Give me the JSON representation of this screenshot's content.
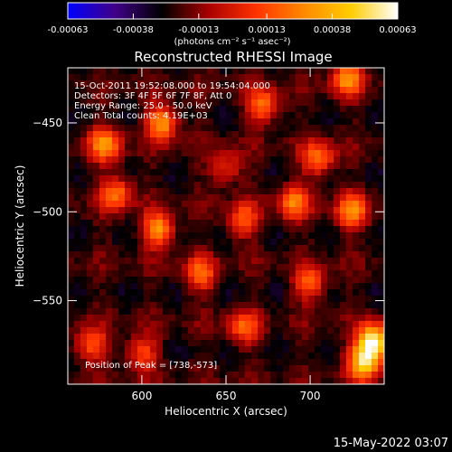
{
  "chart_data": {
    "type": "heatmap",
    "title": "Reconstructed RHESSI Image",
    "xlabel": "Heliocentric X (arcsec)",
    "ylabel": "Heliocentric Y (arcsec)",
    "xlim": [
      556,
      744
    ],
    "ylim": [
      -597,
      -419
    ],
    "x_ticks": [
      600,
      650,
      700
    ],
    "y_ticks": [
      -450,
      -500,
      -550
    ],
    "colorbar": {
      "range": [
        -0.00063,
        0.00063
      ],
      "ticks": [
        "-0.00063",
        "-0.00038",
        "-0.00013",
        "0.00013",
        "0.00038",
        "0.00063"
      ],
      "tick_values": [
        -0.00063,
        -0.00038,
        -0.00013,
        0.00013,
        0.00038,
        0.00063
      ],
      "unit_text": "(photons cm⁻² s⁻¹ asec⁻²)",
      "colormap": [
        "#0000ff",
        "#400088",
        "#000000",
        "#aa0000",
        "#ff3300",
        "#ff8800",
        "#ffcc00",
        "#ffffff"
      ]
    },
    "annotations": [
      "15-Oct-2011 19:52:08.000 to 19:54:04.000",
      "Detectors: 3F 4F 5F 6F 7F 8F, Att 0",
      "Energy Range: 25.0 - 50.0 keV",
      "Clean     Total counts: 4.19E+03"
    ],
    "peak_label": "Position of Peak = [738,-573]",
    "peak": [
      738,
      -573
    ],
    "blobs": [
      {
        "x": 612,
        "y": -450,
        "value": 0.00032
      },
      {
        "x": 578,
        "y": -462,
        "value": 0.00028
      },
      {
        "x": 672,
        "y": -440,
        "value": 0.00022
      },
      {
        "x": 722,
        "y": -425,
        "value": 0.00026
      },
      {
        "x": 705,
        "y": -470,
        "value": 0.00022
      },
      {
        "x": 725,
        "y": -500,
        "value": 0.00026
      },
      {
        "x": 690,
        "y": -495,
        "value": 0.00022
      },
      {
        "x": 660,
        "y": -505,
        "value": 0.00016
      },
      {
        "x": 610,
        "y": -510,
        "value": 0.0003
      },
      {
        "x": 585,
        "y": -490,
        "value": 0.00022
      },
      {
        "x": 635,
        "y": -535,
        "value": 0.00018
      },
      {
        "x": 570,
        "y": -575,
        "value": 0.00016
      },
      {
        "x": 660,
        "y": -565,
        "value": 0.00014
      },
      {
        "x": 700,
        "y": -540,
        "value": 0.00018
      },
      {
        "x": 738,
        "y": -573,
        "value": 0.00063
      },
      {
        "x": 732,
        "y": -585,
        "value": 0.00045
      },
      {
        "x": 600,
        "y": -580,
        "value": 0.00012
      },
      {
        "x": 650,
        "y": -475,
        "value": 8e-05
      }
    ],
    "grid": false
  },
  "footer": {
    "timestamp": "15-May-2022 03:07"
  }
}
